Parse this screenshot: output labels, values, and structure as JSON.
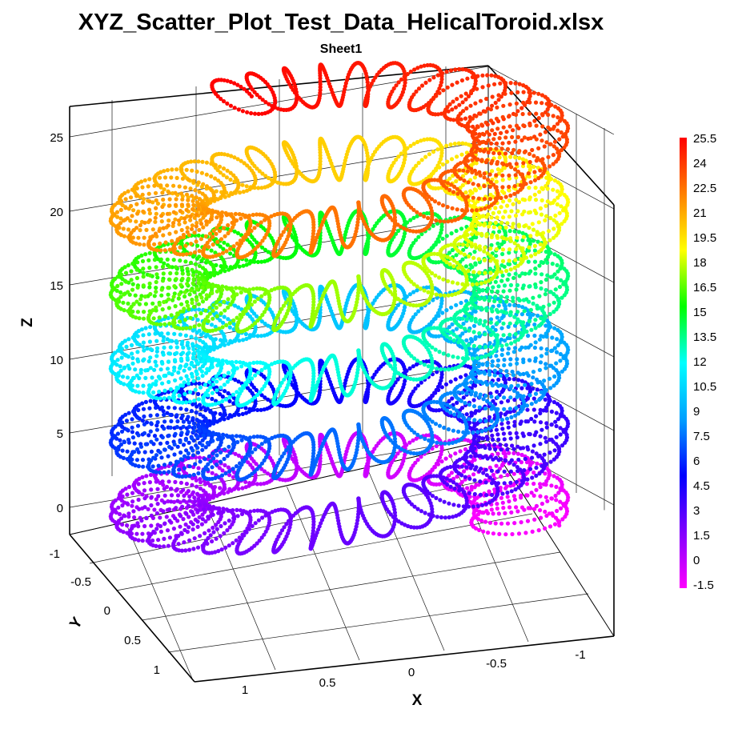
{
  "chart_data": {
    "type": "scatter",
    "title": "XYZ_Scatter_Plot_Test_Data_HelicalToroid.xlsx",
    "subtitle": "Sheet1",
    "xlabel": "X",
    "ylabel": "Y",
    "zlabel": "Z",
    "x_ticks": [
      "1",
      "0.5",
      "0",
      "-0.5",
      "-1"
    ],
    "y_ticks": [
      "-1",
      "-0.5",
      "0",
      "0.5",
      "1"
    ],
    "z_ticks": [
      "0",
      "5",
      "10",
      "15",
      "20",
      "25"
    ],
    "xlim": [
      -1.2,
      1.2
    ],
    "ylim": [
      -1.2,
      1.2
    ],
    "zlim": [
      -2.5,
      26.5
    ],
    "colorbar_ticks": [
      "25.5",
      "24",
      "22.5",
      "21",
      "19.5",
      "18",
      "16.5",
      "15",
      "13.5",
      "12",
      "10.5",
      "9",
      "7.5",
      "6",
      "4.5",
      "3",
      "1.5",
      "0",
      "-1.5"
    ],
    "colorbar_range": [
      -1.5,
      25.5
    ],
    "colormap": [
      "#ff00ff",
      "#8000ff",
      "#0000ff",
      "#00a0ff",
      "#00ffff",
      "#00ff00",
      "#ffff00",
      "#ff8000",
      "#ff0000"
    ],
    "grid": true,
    "series": [
      {
        "shape": "helical toroid",
        "major_radius": 1.0,
        "minor_radius": 0.26,
        "z_start": -1.5,
        "z_end": 25.5,
        "rise_per_turn": 5.0,
        "coils_per_turn": 36,
        "color_by": "z"
      }
    ]
  }
}
